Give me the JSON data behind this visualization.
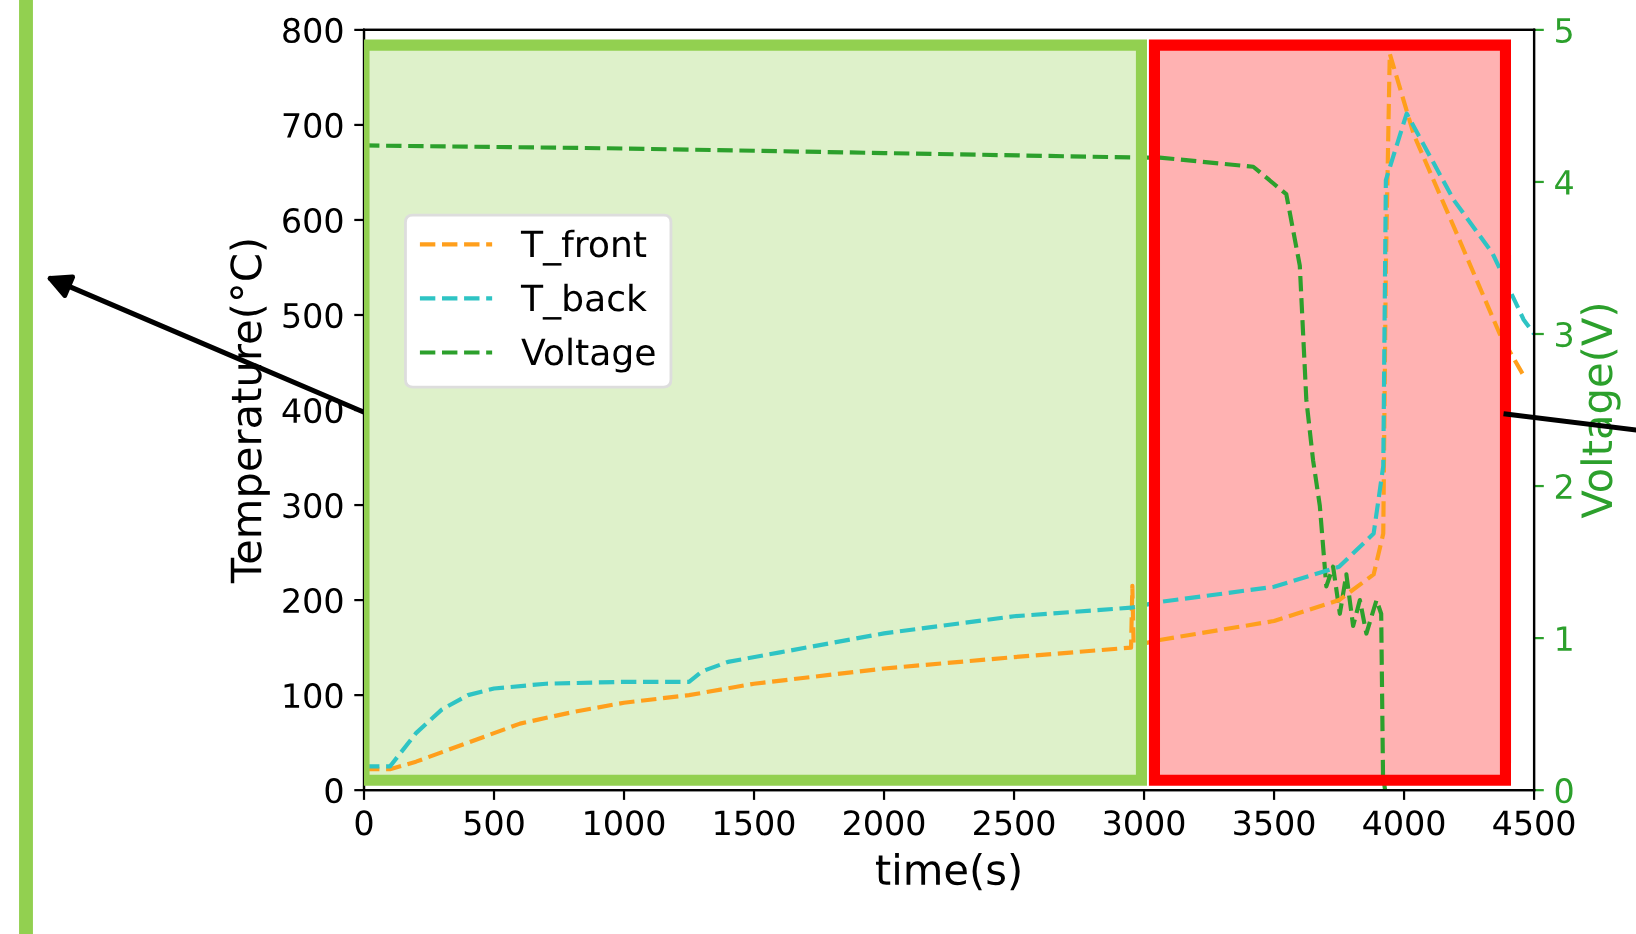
{
  "chart_data": {
    "type": "line",
    "xlabel": "time(s)",
    "ylabel": "Temperature(°C)",
    "y2label": "Voltage(V)",
    "xlim": [
      0,
      4500
    ],
    "xticks": [
      0,
      500,
      1000,
      1500,
      2000,
      2500,
      3000,
      3500,
      4000,
      4500
    ],
    "ylim": [
      0,
      800
    ],
    "yticks": [
      0,
      100,
      200,
      300,
      400,
      500,
      600,
      700,
      800
    ],
    "y2lim": [
      0,
      5
    ],
    "y2ticks": [
      0,
      1,
      2,
      3,
      4,
      5
    ],
    "line_style": "dashed",
    "legend": "left",
    "grid": false,
    "bands": [
      {
        "axis": "x",
        "from": 0,
        "to": 2990,
        "color": "#92d050"
      },
      {
        "axis": "x",
        "from": 3040,
        "to": 4390,
        "color": "#ff0000"
      }
    ],
    "series": [
      {
        "name": "T_front",
        "color": "#ff9f1c",
        "x": [
          0,
          100,
          200,
          400,
          600,
          800,
          1000,
          1250,
          1500,
          2000,
          2500,
          2950,
          2955,
          2960,
          3060,
          3500,
          3750,
          3883,
          3920,
          3930,
          3945,
          4037,
          4191,
          4368,
          4460
        ],
        "values": [
          22,
          22,
          30,
          50,
          70,
          82,
          92,
          100,
          112,
          128,
          140,
          150,
          215,
          152,
          158,
          178,
          200,
          227,
          270,
          551,
          775,
          690,
          593,
          480,
          436
        ]
      },
      {
        "name": "T_back",
        "color": "#2ec4c4",
        "x": [
          0,
          100,
          200,
          300,
          400,
          500,
          700,
          1000,
          1250,
          1300,
          1400,
          1600,
          2000,
          2500,
          2950,
          3060,
          3500,
          3750,
          3883,
          3920,
          3930,
          4010,
          4191,
          4340,
          4460,
          4500
        ],
        "values": [
          25,
          25,
          60,
          85,
          100,
          107,
          112,
          114,
          114,
          125,
          135,
          145,
          165,
          183,
          192,
          198,
          214,
          235,
          270,
          341,
          642,
          712,
          621,
          565,
          495,
          480
        ]
      },
      {
        "name": "Voltage",
        "color": "#2ca02c",
        "axis": "y2",
        "x": [
          0,
          1000,
          2000,
          3000,
          3060,
          3420,
          3547,
          3599,
          3624,
          3650,
          3676,
          3701,
          3727,
          3753,
          3778,
          3804,
          3830,
          3855,
          3894,
          3912,
          3919,
          3927
        ],
        "values": [
          4.24,
          4.22,
          4.19,
          4.16,
          4.16,
          4.1,
          3.92,
          3.45,
          2.57,
          2.17,
          1.87,
          1.34,
          1.47,
          1.16,
          1.42,
          1.08,
          1.25,
          1.03,
          1.25,
          1.16,
          0.1,
          0
        ]
      }
    ]
  }
}
